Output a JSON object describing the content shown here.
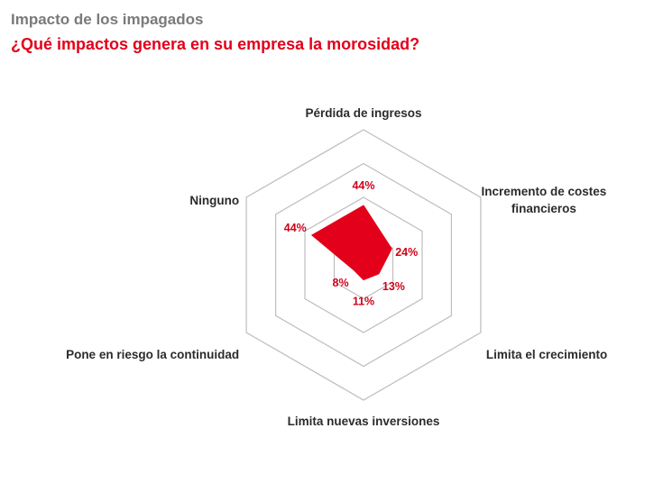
{
  "header": {
    "title": "Impacto de los impagados",
    "subtitle": "¿Qué impactos genera en su empresa la morosidad?"
  },
  "chart_data": {
    "type": "radar",
    "categories": [
      "Pérdida de ingresos",
      "Incremento de costes financieros",
      "Limita el crecimiento",
      "Limita nuevas inversiones",
      "Pone en riesgo la continuidad",
      "Ninguno"
    ],
    "category_lines": [
      [
        "Pérdida de ingresos"
      ],
      [
        "Incremento de costes",
        "financieros"
      ],
      [
        "Limita el crecimiento"
      ],
      [
        "Limita nuevas inversiones"
      ],
      [
        "Pone en riesgo la continuidad"
      ],
      [
        "Ninguno"
      ]
    ],
    "values": [
      44,
      24,
      13,
      11,
      8,
      44
    ],
    "value_labels": [
      "44%",
      "24%",
      "13%",
      "11%",
      "8%",
      "44%"
    ],
    "rlim": [
      0,
      100
    ],
    "grid_levels": 4,
    "series_color": "#e2001a",
    "grid_color": "#bdbdbd"
  }
}
